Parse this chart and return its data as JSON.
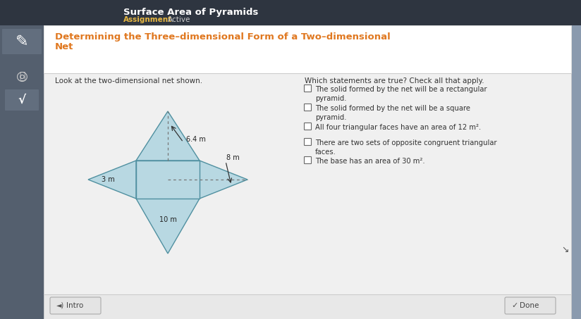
{
  "page_bg": "#8a9aae",
  "header_bg": "#3a4050",
  "card_bg": "#f0f0f0",
  "title_color": "#e07820",
  "top_title": "Surface Area of Pyramids",
  "top_subtitle_a": "Assignment",
  "top_subtitle_b": "Active",
  "title_text_line1": "Determining the Three–dimensional Form of a Two–dimensional",
  "title_text_line2": "Net",
  "left_label": "Look at the two-dimensional net shown.",
  "right_label": "Which statements are true? Check all that apply.",
  "statements": [
    "The solid formed by the net will be a rectangular\npyramid.",
    "The solid formed by the net will be a square\npyramid.",
    "All four triangular faces have an area of 12 m².",
    "There are two sets of opposite congruent triangular\nfaces.",
    "The base has an area of 30 m²."
  ],
  "net_color": "#b8d8e2",
  "net_edge_color": "#5090a0",
  "dashed_color": "#777777",
  "label_6_4": "6.4 m",
  "label_8": "8 m",
  "label_3": "3 m",
  "label_10": "10 m",
  "intro_btn": "Intro",
  "done_btn": "Done"
}
